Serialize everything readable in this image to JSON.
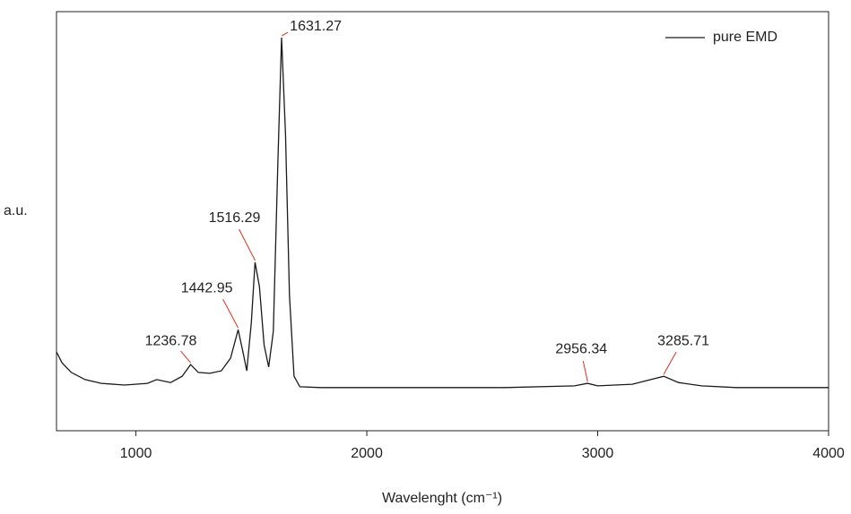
{
  "chart_data": {
    "type": "line",
    "x_label": "Wavelenght (cm⁻¹)",
    "y_label": "a.u.",
    "xlim": [
      656,
      4000
    ],
    "ylim": [
      0,
      100
    ],
    "xticks": [
      1000,
      2000,
      3000,
      4000
    ],
    "grid": false,
    "legend": "upper right",
    "x": [
      656,
      680,
      720,
      780,
      850,
      950,
      1050,
      1090,
      1150,
      1200,
      1237,
      1270,
      1320,
      1370,
      1410,
      1443,
      1465,
      1480,
      1500,
      1516,
      1535,
      1555,
      1575,
      1595,
      1615,
      1631,
      1648,
      1665,
      1685,
      1710,
      1800,
      2600,
      2900,
      2956,
      3000,
      3150,
      3230,
      3286,
      3350,
      3450,
      3600,
      4000
    ],
    "series": [
      {
        "name": "pure EMD",
        "color": "#1a1a1a",
        "values": [
          18.8,
          16.2,
          13.9,
          12.2,
          11.3,
          10.9,
          11.3,
          12.2,
          11.5,
          13.0,
          15.8,
          13.9,
          13.7,
          14.3,
          17.3,
          24.1,
          18.4,
          14.3,
          25.9,
          40.2,
          34.4,
          20.5,
          15.2,
          23.7,
          64.3,
          93.8,
          70.7,
          32.3,
          13.0,
          10.5,
          10.3,
          10.3,
          10.7,
          11.3,
          10.7,
          11.1,
          12.2,
          13.0,
          11.5,
          10.7,
          10.3,
          10.3
        ]
      }
    ],
    "annotations": [
      {
        "label": "1236.78",
        "x": 1236.78,
        "y": 15.8
      },
      {
        "label": "1442.95",
        "x": 1442.95,
        "y": 24.1
      },
      {
        "label": "1516.29",
        "x": 1516.29,
        "y": 40.2
      },
      {
        "label": "1631.27",
        "x": 1631.27,
        "y": 93.8
      },
      {
        "label": "2956.34",
        "x": 2956.34,
        "y": 11.3
      },
      {
        "label": "3285.71",
        "x": 3285.71,
        "y": 13.0
      }
    ],
    "annotation_color": "#e03020"
  }
}
